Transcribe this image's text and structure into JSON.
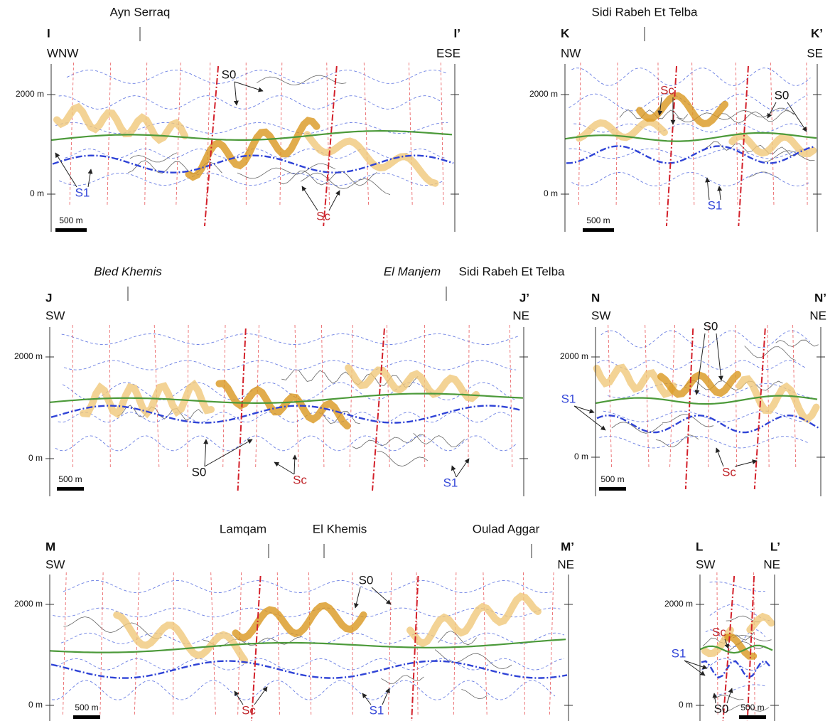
{
  "sections": [
    {
      "start": "I",
      "start_dir": "WNW",
      "end": "I’",
      "end_dir": "ESE",
      "localities": [
        "Ayn Serraq"
      ],
      "axis": [
        "2000 m",
        "0 m"
      ],
      "scale": "500 m",
      "annotations": [
        "S0",
        "S1",
        "Sc"
      ]
    },
    {
      "start": "K",
      "start_dir": "NW",
      "end": "K’",
      "end_dir": "SE",
      "localities": [
        "Sidi Rabeh Et Telba"
      ],
      "axis": [
        "2000 m",
        "0 m"
      ],
      "scale": "500 m",
      "annotations": [
        "Sc",
        "S0",
        "S1"
      ]
    },
    {
      "start": "J",
      "start_dir": "SW",
      "end": "J’",
      "end_dir": "NE",
      "localities": [
        "Bled Khemis",
        "El Manjem",
        "Sidi Rabeh Et Telba"
      ],
      "axis": [
        "2000 m",
        "0 m"
      ],
      "scale": "500 m",
      "annotations": [
        "S0",
        "Sc",
        "S1"
      ]
    },
    {
      "start": "N",
      "start_dir": "SW",
      "end": "N’",
      "end_dir": "NE",
      "localities": [],
      "axis": [
        "2000 m",
        "0 m"
      ],
      "scale": "500 m",
      "annotations": [
        "S0",
        "S1",
        "Sc"
      ]
    },
    {
      "start": "M",
      "start_dir": "SW",
      "end": "M’",
      "end_dir": "NE",
      "localities": [
        "Lamqam",
        "El Khemis",
        "Oulad Aggar"
      ],
      "axis": [
        "2000 m",
        "0 m"
      ],
      "scale": "500 m",
      "annotations": [
        "S0",
        "Sc",
        "S1"
      ]
    },
    {
      "start": "L",
      "start_dir": "SW",
      "end": "L’",
      "end_dir": "NE",
      "localities": [],
      "axis": [
        "2000 m",
        "0 m"
      ],
      "scale": "500 m",
      "annotations": [
        "Sc",
        "S1",
        "S0"
      ]
    }
  ]
}
